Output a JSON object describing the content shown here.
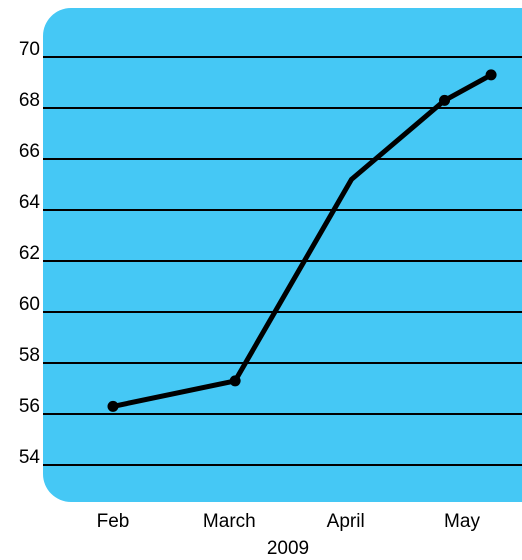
{
  "chart_data": {
    "type": "line",
    "categories": [
      "Feb",
      "March",
      "April",
      "May"
    ],
    "x": [
      1.0,
      2.05,
      3.05,
      3.85,
      4.25
    ],
    "series": [
      {
        "values": [
          56.3,
          57.3,
          65.2,
          68.3,
          69.3
        ]
      }
    ],
    "marker_indices": [
      0,
      1,
      3,
      4
    ],
    "xlabel": "2009",
    "ylabel": "",
    "title": "",
    "ylim": [
      53,
      71
    ],
    "yticks": [
      54,
      56,
      58,
      60,
      62,
      64,
      66,
      68,
      70
    ],
    "xlim": [
      0.5,
      4.5
    ],
    "grid": "horizontal",
    "legend": "none",
    "colors": {
      "background": "#45c8f5",
      "line": "#000000",
      "grid": "#000000"
    }
  }
}
